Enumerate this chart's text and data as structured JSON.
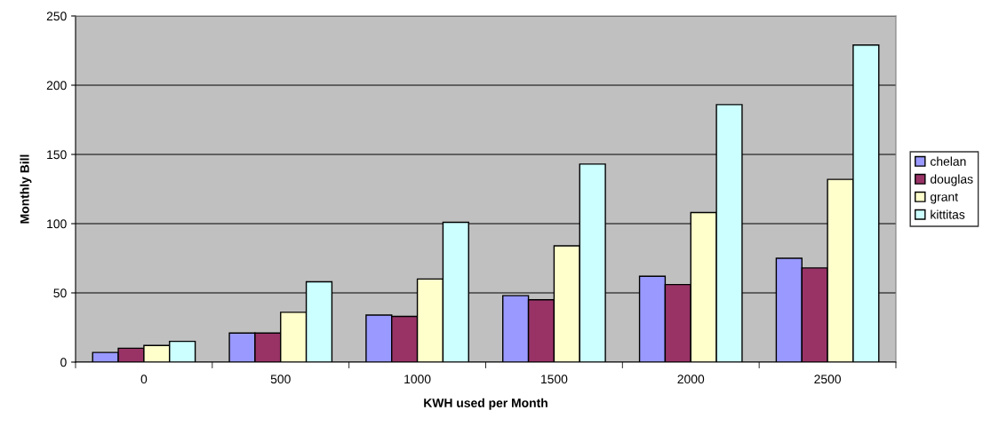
{
  "chart_data": {
    "type": "bar",
    "xlabel": "KWH used per Month",
    "ylabel": "Monthly Bill",
    "categories": [
      "0",
      "500",
      "1000",
      "1500",
      "2000",
      "2500"
    ],
    "series": [
      {
        "name": "chelan",
        "color": "#9999ff",
        "values": [
          7,
          21,
          34,
          48,
          62,
          75
        ]
      },
      {
        "name": "douglas",
        "color": "#993366",
        "values": [
          10,
          21,
          33,
          45,
          56,
          68
        ]
      },
      {
        "name": "grant",
        "color": "#ffffcc",
        "values": [
          12,
          36,
          60,
          84,
          108,
          132
        ]
      },
      {
        "name": "kittitas",
        "color": "#ccffff",
        "values": [
          15,
          58,
          101,
          143,
          186,
          229
        ]
      }
    ],
    "ylim": [
      0,
      250
    ],
    "yticks": [
      0,
      50,
      100,
      150,
      200,
      250
    ],
    "grid": "y",
    "legend": "right"
  }
}
